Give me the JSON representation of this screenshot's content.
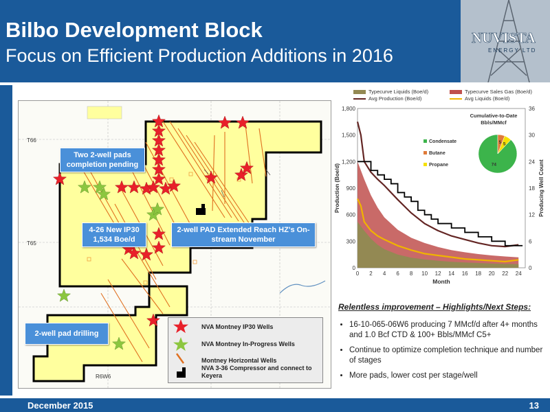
{
  "header": {
    "title": "Bilbo Development Block",
    "subtitle": "Focus on Efficient Production Additions in 2016"
  },
  "logo": {
    "text": "NUVISTA",
    "sub": "ENERGY LTD"
  },
  "map": {
    "township_labels": [
      "T66",
      "T65",
      "R6W6"
    ],
    "callouts": [
      {
        "text": "Two 2-well pads completion pending"
      },
      {
        "text": "4-26 New IP30 1,534 Boe/d"
      },
      {
        "text": "2-well PAD Extended Reach HZ's On-stream November"
      },
      {
        "text": "2-well pad drilling"
      }
    ],
    "legend": [
      {
        "label": "NVA Montney IP30 Wells",
        "icon": "red-star-icon"
      },
      {
        "label": "NVA Montney  In-Progress Wells",
        "icon": "green-star-icon"
      },
      {
        "label": "Montney Horizontal Wells",
        "icon": "horizontal-well-icon"
      },
      {
        "label": "NVA 3-36 Compressor and connect to Keyera",
        "icon": "compressor-icon"
      }
    ]
  },
  "chart_data": {
    "type": "area",
    "legend": [
      "Typecurve Liquids (Boe/d)",
      "Typecurve Sales Gas (Boe/d)",
      "Avg Production (Boe/d)",
      "Avg Liquids (Boe/d)"
    ],
    "xlabel": "Month",
    "ylabel": "Production (Boe/d)",
    "y2label": "Producing Well Count",
    "xlim": [
      0,
      25
    ],
    "ylim": [
      0,
      1800
    ],
    "y2lim": [
      0,
      36
    ],
    "xticks": [
      0,
      2,
      4,
      6,
      8,
      10,
      12,
      14,
      16,
      18,
      20,
      22,
      24
    ],
    "yticks": [
      "0",
      "300",
      "600",
      "900",
      "1,200",
      "1,500",
      "1,800"
    ],
    "y2ticks": [
      0,
      6,
      12,
      18,
      24,
      30,
      36
    ],
    "series": [
      {
        "name": "Typecurve Sales Gas (Boe/d)",
        "color": "#c0504d",
        "x": [
          0,
          1,
          2,
          3,
          4,
          6,
          8,
          10,
          12,
          14,
          16,
          18,
          20,
          22,
          24
        ],
        "values": [
          1200,
          1000,
          820,
          680,
          570,
          430,
          340,
          280,
          235,
          200,
          175,
          155,
          140,
          128,
          118
        ]
      },
      {
        "name": "Typecurve Liquids (Boe/d)",
        "color": "#938953",
        "x": [
          0,
          1,
          2,
          3,
          4,
          6,
          8,
          10,
          12,
          14,
          16,
          18,
          20,
          22,
          24
        ],
        "values": [
          520,
          420,
          330,
          260,
          210,
          150,
          115,
          95,
          80,
          68,
          60,
          54,
          49,
          45,
          42
        ]
      },
      {
        "name": "Avg Production (Boe/d)",
        "color": "#632523",
        "x": [
          0,
          0.5,
          1,
          2,
          3,
          4,
          6,
          8,
          10,
          12,
          14,
          16,
          18,
          20,
          22,
          24
        ],
        "values": [
          1650,
          1500,
          1200,
          1080,
          1000,
          930,
          770,
          620,
          500,
          420,
          360,
          320,
          280,
          250,
          240,
          260
        ]
      },
      {
        "name": "Avg Liquids (Boe/d)",
        "color": "#f0b400",
        "x": [
          0,
          0.5,
          1,
          2,
          3,
          4,
          6,
          8,
          10,
          12,
          14,
          16,
          18,
          20,
          22,
          24
        ],
        "values": [
          780,
          700,
          520,
          420,
          360,
          320,
          250,
          200,
          160,
          140,
          120,
          100,
          90,
          80,
          70,
          90
        ]
      },
      {
        "name": "Producing Well Count",
        "color": "#000000",
        "x": [
          0,
          1,
          2,
          3,
          4,
          5,
          6,
          7,
          8,
          9,
          10,
          11,
          12,
          13,
          14,
          15,
          16,
          17,
          18,
          19,
          20,
          21,
          22,
          23,
          24
        ],
        "values": [
          24,
          24,
          22,
          21,
          20,
          19,
          17,
          16,
          15,
          13,
          12,
          11,
          10,
          10,
          9,
          9,
          8,
          8,
          7,
          7,
          6,
          6,
          5,
          5,
          5
        ]
      }
    ],
    "inset_pie": {
      "title": "Cumulative-to-Date Bbls/MMcf",
      "slices": [
        {
          "name": "Condensate",
          "value": 74,
          "color": "#3cb44b"
        },
        {
          "name": "Butane",
          "value": 5,
          "color": "#e07b39"
        },
        {
          "name": "Propane",
          "value": 5,
          "color": "#f5e000"
        }
      ]
    }
  },
  "bullets": {
    "heading": "Relentless improvement – Highlights/Next Steps:",
    "items": [
      "16-10-065-06W6 producing 7 MMcf/d after 4+ months and 1.0 Bcf CTD & 100+ Bbls/MMcf C5+",
      "Continue to optimize completion technique and number of stages",
      "More pads, lower cost per stage/well"
    ]
  },
  "footer": {
    "date": "December 2015",
    "page": "13"
  }
}
